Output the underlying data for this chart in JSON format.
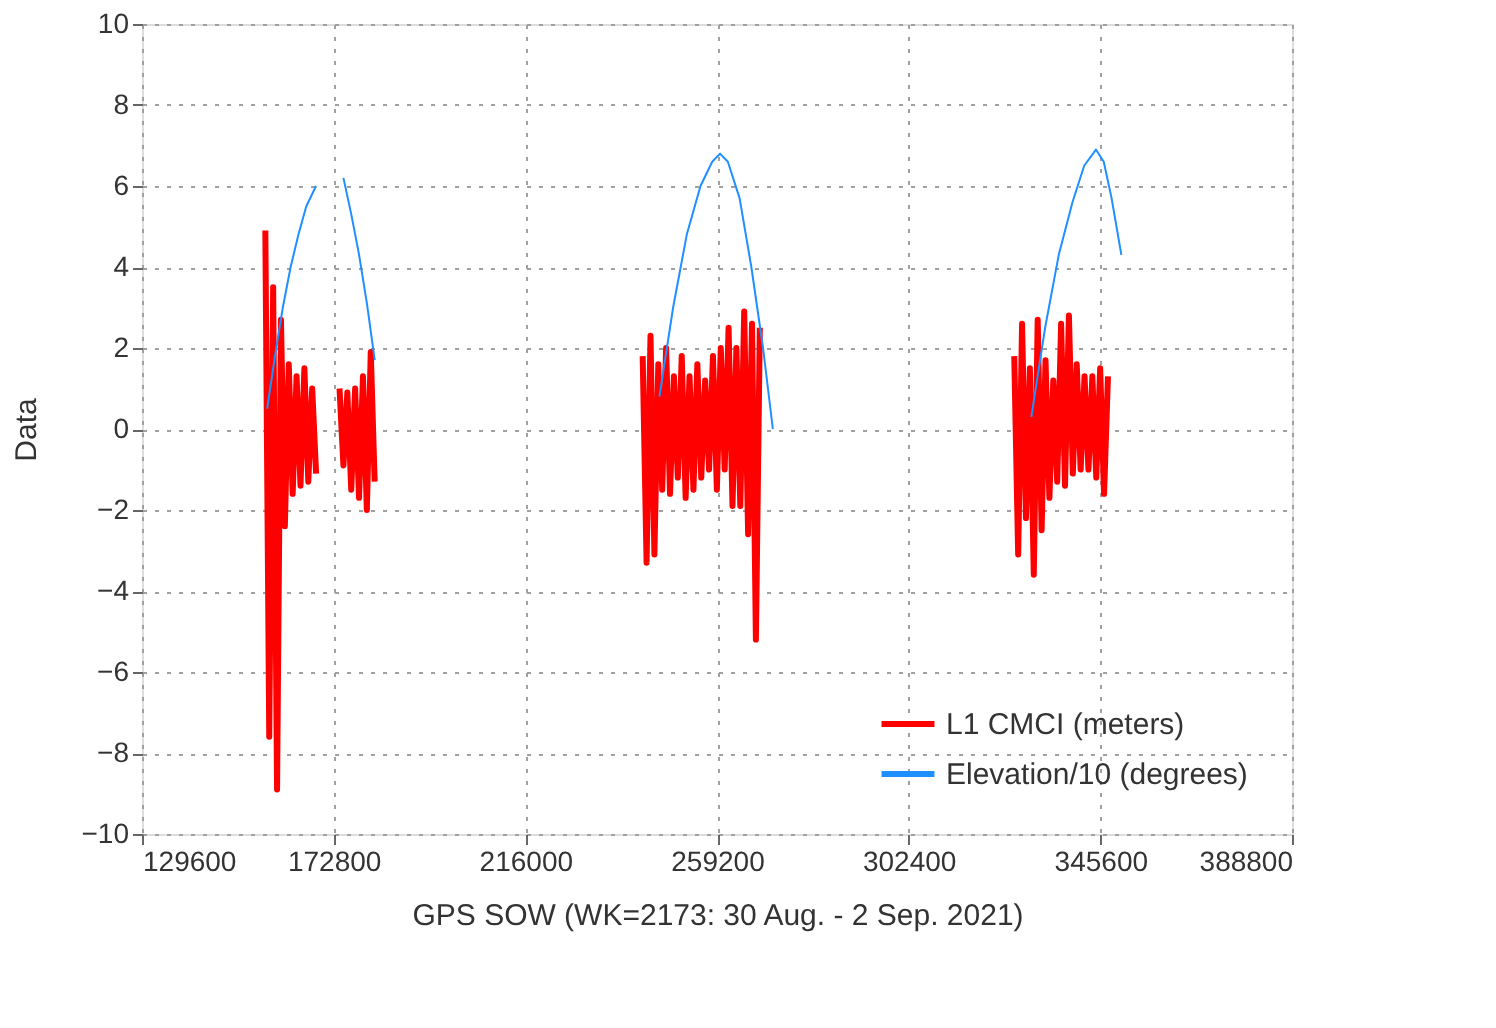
{
  "chart_data": {
    "type": "line",
    "xlabel": "GPS SOW (WK=2173: 30 Aug. - 2 Sep. 2021)",
    "ylabel": "Data",
    "xlim": [
      129600,
      388800
    ],
    "xticks": [
      129600,
      172800,
      216000,
      259200,
      302400,
      345600,
      388800
    ],
    "ylim": [
      -10,
      10
    ],
    "yticks": [
      -10,
      -8,
      -6,
      -4,
      -2,
      0,
      2,
      4,
      6,
      8,
      10
    ],
    "grid": true,
    "legend": "bottom right",
    "series": [
      {
        "name": "L1 CMCI (meters)",
        "color": "#ff0000",
        "x": [
          157400,
          158280,
          159160,
          160040,
          160920,
          161800,
          162680,
          163560,
          164440,
          165320,
          166200,
          167080,
          167960,
          168840,
          171500,
          174120,
          175000,
          175880,
          176760,
          177640,
          178520,
          179400,
          180280,
          181160,
          182040,
          210000,
          242450,
          243330,
          244210,
          245090,
          245970,
          246850,
          247730,
          248610,
          249490,
          250370,
          251250,
          252130,
          253010,
          253890,
          254770,
          255650,
          256530,
          257410,
          258290,
          259170,
          260050,
          260930,
          261810,
          262690,
          263570,
          264450,
          265330,
          266210,
          267090,
          267970,
          268850,
          300000,
          326200,
          327080,
          327960,
          328840,
          329720,
          330600,
          331480,
          332360,
          333240,
          334120,
          335000,
          335880,
          336760,
          337640,
          338520,
          339400,
          340280,
          341160,
          342040,
          342920,
          343800,
          344680,
          345560,
          346440,
          347320
        ],
        "values": [
          4.9,
          -7.6,
          3.5,
          -8.9,
          2.7,
          -2.4,
          1.6,
          -1.6,
          1.3,
          -1.4,
          1.5,
          -1.3,
          1.0,
          -1.1,
          null,
          1.0,
          -0.9,
          0.9,
          -1.5,
          1.0,
          -1.7,
          1.3,
          -2.0,
          1.9,
          -1.3,
          null,
          1.8,
          -3.3,
          2.3,
          -3.1,
          1.6,
          -1.5,
          2.0,
          -1.6,
          1.3,
          -1.2,
          1.8,
          -1.7,
          1.3,
          -1.5,
          1.6,
          -1.2,
          1.2,
          -1.0,
          1.8,
          -1.5,
          2.0,
          -1.0,
          2.5,
          -1.9,
          2.0,
          -1.9,
          2.9,
          -2.6,
          2.6,
          -5.2,
          2.5,
          null,
          1.8,
          -3.1,
          2.6,
          -2.2,
          1.5,
          -3.6,
          2.7,
          -2.5,
          1.7,
          -1.7,
          1.2,
          -1.3,
          2.6,
          -1.4,
          2.8,
          -1.1,
          1.6,
          -1.0,
          1.3,
          -1.0,
          1.3,
          -1.2,
          1.5,
          -1.6,
          1.3
        ]
      },
      {
        "name": "Elevation/10 (degrees)",
        "color": "#1e90ff",
        "x": [
          157810,
          159570,
          161340,
          163100,
          164860,
          166630,
          168830,
          171900,
          175000,
          176770,
          178530,
          180290,
          182060,
          210000,
          246220,
          249310,
          252390,
          255480,
          258120,
          259880,
          261650,
          264290,
          266940,
          269580,
          271790,
          300000,
          330060,
          333150,
          336230,
          339320,
          341960,
          344610,
          346370,
          348130,
          350340
        ],
        "values": [
          0.5,
          1.8,
          3.0,
          4.0,
          4.8,
          5.5,
          6.0,
          null,
          6.2,
          5.3,
          4.3,
          3.1,
          1.7,
          null,
          0.8,
          3.0,
          4.8,
          6.0,
          6.6,
          6.8,
          6.6,
          5.7,
          4.0,
          2.0,
          0.0,
          null,
          0.3,
          2.5,
          4.3,
          5.6,
          6.5,
          6.9,
          6.6,
          5.7,
          4.3
        ]
      }
    ]
  }
}
